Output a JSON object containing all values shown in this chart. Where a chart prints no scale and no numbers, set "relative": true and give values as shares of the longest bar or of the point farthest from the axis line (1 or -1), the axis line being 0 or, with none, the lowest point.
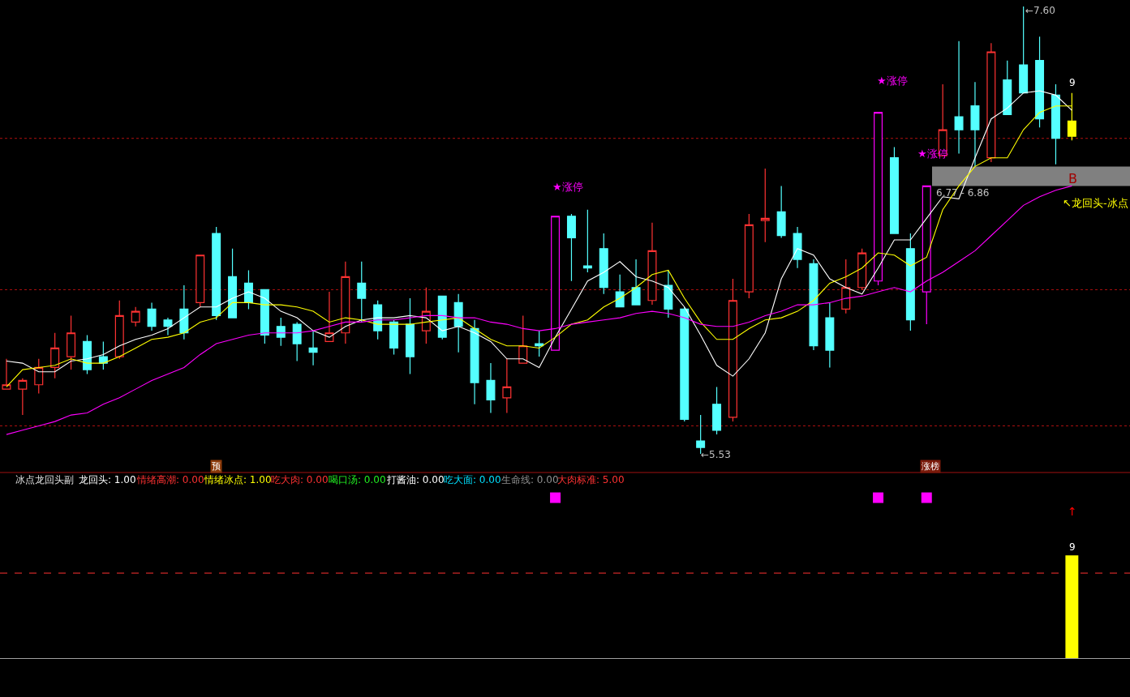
{
  "chart_data": [
    {
      "type": "candlestick",
      "categories": [
        null,
        null,
        null,
        null,
        null,
        null,
        null,
        null,
        null,
        null,
        null,
        null,
        null,
        null,
        null,
        null,
        null,
        null,
        null,
        null,
        null,
        null,
        null,
        null,
        null,
        null,
        null,
        null,
        null,
        null,
        null,
        null,
        null,
        null,
        null,
        null,
        null,
        null,
        null,
        null,
        null,
        null,
        null,
        null,
        null,
        null,
        null,
        null,
        null,
        null,
        null,
        null,
        null,
        null,
        null,
        null,
        null,
        null,
        null,
        null,
        null,
        null,
        null,
        null,
        null,
        null,
        null
      ],
      "ohlc": [
        [
          5.83,
          5.97,
          5.83,
          5.85
        ],
        [
          5.83,
          5.88,
          5.71,
          5.87
        ],
        [
          5.85,
          5.97,
          5.81,
          5.93
        ],
        [
          5.93,
          6.09,
          5.88,
          6.02
        ],
        [
          5.98,
          6.17,
          5.92,
          6.09
        ],
        [
          6.05,
          6.08,
          5.9,
          5.92
        ],
        [
          5.98,
          6.05,
          5.92,
          5.95
        ],
        [
          5.98,
          6.24,
          5.97,
          6.17
        ],
        [
          6.14,
          6.21,
          6.12,
          6.19
        ],
        [
          6.2,
          6.23,
          6.1,
          6.12
        ],
        [
          6.15,
          6.16,
          6.08,
          6.12
        ],
        [
          6.2,
          6.31,
          6.06,
          6.09
        ],
        [
          6.23,
          6.45,
          6.21,
          6.45
        ],
        [
          6.55,
          6.58,
          6.15,
          6.17
        ],
        [
          6.35,
          6.48,
          6.16,
          6.16
        ],
        [
          6.32,
          6.38,
          6.2,
          6.23
        ],
        [
          6.29,
          6.29,
          6.04,
          6.08
        ],
        [
          6.12,
          6.16,
          6.03,
          6.07
        ],
        [
          6.13,
          6.14,
          5.96,
          6.04
        ],
        [
          6.02,
          6.1,
          5.94,
          6.0
        ],
        [
          6.05,
          6.28,
          6.05,
          6.09
        ],
        [
          6.09,
          6.42,
          6.04,
          6.35
        ],
        [
          6.32,
          6.42,
          6.14,
          6.25
        ],
        [
          6.22,
          6.24,
          6.06,
          6.1
        ],
        [
          6.14,
          6.15,
          5.99,
          6.02
        ],
        [
          6.13,
          6.25,
          5.9,
          5.98
        ],
        [
          6.1,
          6.3,
          6.04,
          6.19
        ],
        [
          6.26,
          6.26,
          6.06,
          6.07
        ],
        [
          6.23,
          6.27,
          6.0,
          6.12
        ],
        [
          6.11,
          6.15,
          5.76,
          5.86
        ],
        [
          5.87,
          5.95,
          5.72,
          5.78
        ],
        [
          5.79,
          5.97,
          5.72,
          5.84
        ],
        [
          5.95,
          6.17,
          5.95,
          6.03
        ],
        [
          6.04,
          6.1,
          5.98,
          6.03
        ],
        [
          6.01,
          6.63,
          6.01,
          6.63
        ],
        [
          6.63,
          6.64,
          6.33,
          6.53
        ],
        [
          6.4,
          6.66,
          6.37,
          6.39
        ],
        [
          6.48,
          6.55,
          6.27,
          6.3
        ],
        [
          6.28,
          6.36,
          6.21,
          6.21
        ],
        [
          6.3,
          6.43,
          6.22,
          6.22
        ],
        [
          6.24,
          6.6,
          6.22,
          6.47
        ],
        [
          6.31,
          6.38,
          6.16,
          6.2
        ],
        [
          6.2,
          6.21,
          5.68,
          5.69
        ],
        [
          5.59,
          5.71,
          5.53,
          5.56
        ],
        [
          5.76,
          5.84,
          5.62,
          5.64
        ],
        [
          5.7,
          6.34,
          5.68,
          6.24
        ],
        [
          6.28,
          6.64,
          6.25,
          6.59
        ],
        [
          6.61,
          6.85,
          6.51,
          6.62
        ],
        [
          6.65,
          6.77,
          6.53,
          6.54
        ],
        [
          6.55,
          6.58,
          6.39,
          6.43
        ],
        [
          6.41,
          6.43,
          6.01,
          6.03
        ],
        [
          6.16,
          6.23,
          5.93,
          6.01
        ],
        [
          6.2,
          6.43,
          6.18,
          6.3
        ],
        [
          6.3,
          6.48,
          6.29,
          6.46
        ],
        [
          6.33,
          7.11,
          6.31,
          7.11
        ],
        [
          6.9,
          6.95,
          6.55,
          6.55
        ],
        [
          6.48,
          6.55,
          6.1,
          6.15
        ],
        [
          6.28,
          6.77,
          6.13,
          6.77
        ],
        [
          6.91,
          7.24,
          6.91,
          7.03
        ],
        [
          7.09,
          7.44,
          6.92,
          7.03
        ],
        [
          7.14,
          7.25,
          6.86,
          7.03
        ],
        [
          6.9,
          7.43,
          6.88,
          7.39
        ],
        [
          7.26,
          7.35,
          7.1,
          7.1
        ],
        [
          7.33,
          7.6,
          7.2,
          7.2
        ],
        [
          7.35,
          7.46,
          7.04,
          7.08
        ],
        [
          7.19,
          7.24,
          6.87,
          6.99
        ],
        [
          7.07,
          7.2,
          6.98,
          7.0
        ]
      ],
      "colors": [
        "#ff3232",
        "#ff3232",
        "#ff3232",
        "#ff3232",
        "#ff3232",
        "#54ffff",
        "#54ffff",
        "#ff3232",
        "#ff3232",
        "#54ffff",
        "#54ffff",
        "#54ffff",
        "#ff3232",
        "#54ffff",
        "#54ffff",
        "#54ffff",
        "#54ffff",
        "#54ffff",
        "#54ffff",
        "#54ffff",
        "#ff3232",
        "#ff3232",
        "#54ffff",
        "#54ffff",
        "#54ffff",
        "#54ffff",
        "#ff3232",
        "#54ffff",
        "#54ffff",
        "#54ffff",
        "#54ffff",
        "#ff3232",
        "#ff3232",
        "#54ffff",
        "#ff00ff",
        "#54ffff",
        "#54ffff",
        "#54ffff",
        "#54ffff",
        "#54ffff",
        "#ff3232",
        "#54ffff",
        "#54ffff",
        "#54ffff",
        "#54ffff",
        "#ff3232",
        "#ff3232",
        "#ff3232",
        "#54ffff",
        "#54ffff",
        "#54ffff",
        "#54ffff",
        "#ff3232",
        "#ff3232",
        "#ff00ff",
        "#54ffff",
        "#54ffff",
        "#ff00ff",
        "#ff3232",
        "#54ffff",
        "#54ffff",
        "#ff3232",
        "#54ffff",
        "#54ffff",
        "#54ffff",
        "#54ffff",
        "#ffff00"
      ],
      "series": [
        {
          "type": "line",
          "color": "#ffffff",
          "values": [
            5.96,
            5.95,
            5.91,
            5.91,
            5.96,
            5.97,
            5.99,
            6.03,
            6.06,
            6.08,
            6.11,
            6.16,
            6.21,
            6.21,
            6.25,
            6.28,
            6.25,
            6.19,
            6.16,
            6.1,
            6.07,
            6.12,
            6.15,
            6.16,
            6.16,
            6.17,
            6.16,
            6.1,
            6.12,
            6.09,
            6.05,
            5.97,
            5.97,
            5.93,
            6.07,
            6.2,
            6.33,
            6.37,
            6.42,
            6.35,
            6.33,
            6.3,
            6.21,
            6.08,
            5.94,
            5.89,
            5.97,
            6.09,
            6.34,
            6.48,
            6.45,
            6.34,
            6.3,
            6.27,
            6.39,
            6.52,
            6.52,
            6.62,
            6.72,
            6.71,
            6.9,
            7.08,
            7.13,
            7.2,
            7.21,
            7.19,
            7.12
          ]
        },
        {
          "type": "line",
          "color": "#ffff00",
          "values": [
            5.84,
            5.92,
            5.93,
            5.94,
            5.97,
            5.95,
            5.95,
            5.98,
            6.02,
            6.06,
            6.07,
            6.09,
            6.14,
            6.16,
            6.23,
            6.23,
            6.22,
            6.22,
            6.21,
            6.19,
            6.14,
            6.16,
            6.15,
            6.13,
            6.13,
            6.13,
            6.14,
            6.15,
            6.16,
            6.11,
            6.06,
            6.03,
            6.03,
            6.02,
            6.07,
            6.13,
            6.15,
            6.21,
            6.25,
            6.3,
            6.36,
            6.38,
            6.25,
            6.14,
            6.06,
            6.06,
            6.11,
            6.15,
            6.16,
            6.19,
            6.24,
            6.32,
            6.35,
            6.39,
            6.46,
            6.45,
            6.4,
            6.44,
            6.66,
            6.77,
            6.86,
            6.9,
            6.9,
            7.03,
            7.11,
            7.14,
            7.14
          ]
        },
        {
          "type": "line",
          "color": "#ff00ff",
          "values": [
            5.62,
            5.64,
            5.66,
            5.68,
            5.71,
            5.72,
            5.76,
            5.79,
            5.83,
            5.87,
            5.9,
            5.93,
            5.99,
            6.04,
            6.06,
            6.08,
            6.09,
            6.09,
            6.09,
            6.1,
            6.12,
            6.14,
            6.14,
            6.15,
            6.15,
            6.16,
            6.17,
            6.17,
            6.16,
            6.16,
            6.14,
            6.13,
            6.11,
            6.1,
            6.11,
            6.13,
            6.14,
            6.15,
            6.16,
            6.18,
            6.19,
            6.18,
            6.16,
            6.13,
            6.12,
            6.12,
            6.14,
            6.17,
            6.19,
            6.22,
            6.22,
            6.23,
            6.25,
            6.26,
            6.28,
            6.3,
            6.28,
            6.33,
            6.37,
            6.42,
            6.47,
            6.54,
            6.61,
            6.68,
            6.72,
            6.75,
            6.77
          ]
        }
      ],
      "ref_lines": [
        {
          "axis": "y",
          "value": 6.99,
          "color": "#b01010",
          "line_style": "dotted"
        },
        {
          "axis": "y",
          "value": 6.29,
          "color": "#b01010",
          "line_style": "dotted"
        },
        {
          "axis": "y",
          "value": 5.66,
          "color": "#b01010",
          "line_style": "dotted"
        }
      ],
      "bands": [
        {
          "axis": "y",
          "from": 6.77,
          "to": 6.86,
          "label": "6.77 - 6.86",
          "color": "#808080"
        }
      ],
      "annotations": [
        "★涨停",
        "★涨停",
        "★涨停",
        "←7.60",
        "←5.53",
        "9",
        "B",
        "↖龙回头-冰点",
        "预",
        "涨榜"
      ]
    },
    {
      "type": "bar",
      "relative": true,
      "title": "冰点龙回头副",
      "categories": [
        null,
        null,
        null,
        null,
        null,
        null,
        null,
        null,
        null,
        null,
        null,
        null,
        null,
        null,
        null,
        null,
        null,
        null,
        null,
        null,
        null,
        null,
        null,
        null,
        null,
        null,
        null,
        null,
        null,
        null,
        null,
        null,
        null,
        null,
        null,
        null,
        null,
        null,
        null,
        null,
        null,
        null,
        null,
        null,
        null,
        null,
        null,
        null,
        null,
        null,
        null,
        null,
        null,
        null,
        null,
        null,
        null,
        null,
        null,
        null,
        null,
        null,
        null,
        null,
        null,
        null,
        null
      ],
      "series": [
        {
          "type": "scatter",
          "marker": "square",
          "color": "#ff00ff",
          "values": [
            null,
            null,
            null,
            null,
            null,
            null,
            null,
            null,
            null,
            null,
            null,
            null,
            null,
            null,
            null,
            null,
            null,
            null,
            null,
            null,
            null,
            null,
            null,
            null,
            null,
            null,
            null,
            null,
            null,
            null,
            null,
            null,
            null,
            null,
            1,
            null,
            null,
            null,
            null,
            null,
            null,
            null,
            null,
            null,
            null,
            null,
            null,
            null,
            null,
            null,
            null,
            null,
            null,
            null,
            1,
            null,
            null,
            1,
            null,
            null,
            null,
            null,
            null,
            null,
            null,
            null,
            null
          ]
        },
        {
          "type": "bar",
          "color": "#ffff00",
          "values": [
            null,
            null,
            null,
            null,
            null,
            null,
            null,
            null,
            null,
            null,
            null,
            null,
            null,
            null,
            null,
            null,
            null,
            null,
            null,
            null,
            null,
            null,
            null,
            null,
            null,
            null,
            null,
            null,
            null,
            null,
            null,
            null,
            null,
            null,
            null,
            null,
            null,
            null,
            null,
            null,
            null,
            null,
            null,
            null,
            null,
            null,
            null,
            null,
            null,
            null,
            null,
            null,
            null,
            null,
            null,
            null,
            null,
            null,
            null,
            null,
            null,
            null,
            null,
            null,
            null,
            null,
            0.64
          ]
        }
      ],
      "ref_lines": [
        {
          "axis": "y",
          "value": 0.53,
          "color": "#ff3232",
          "line_style": "dashed"
        }
      ],
      "annotations": [
        "9",
        "龙回头: 1.00",
        "情绪高潮: 0.00",
        "情绪冰点: 1.00",
        "吃大肉: 0.00",
        "喝口汤: 0.00",
        "打酱油: 0.00",
        "吃大面: 0.00",
        "生命线: 0.00",
        "大肉标准: 5.00",
        "↑"
      ]
    }
  ]
}
